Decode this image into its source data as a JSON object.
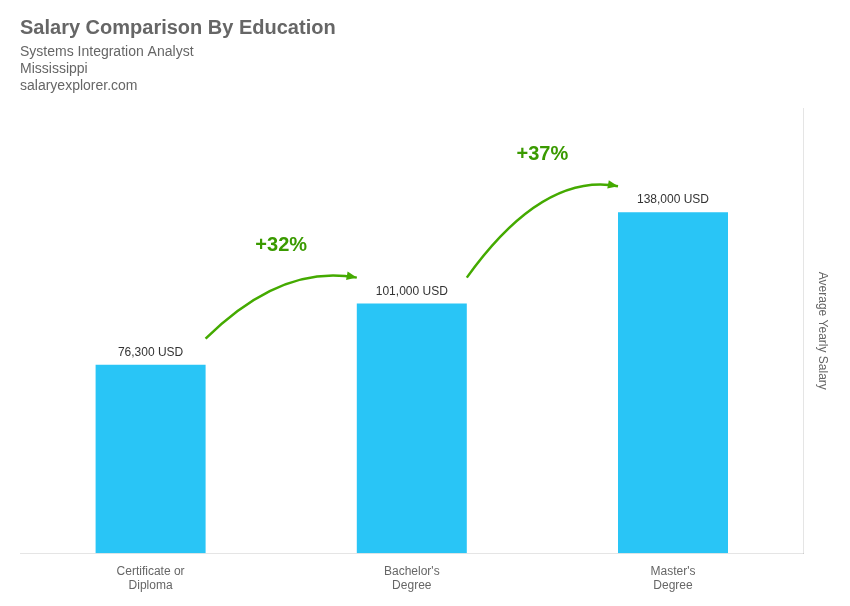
{
  "chart_data": {
    "type": "bar",
    "title": "Salary Comparison By Education",
    "subtitle": "Systems Integration Analyst",
    "ylabel": "Average Yearly Salary",
    "categories": [
      "Certificate or\nDiploma",
      "Bachelor's\nDegree",
      "Master's\nDegree"
    ],
    "values": [
      76300,
      101000,
      138000
    ],
    "value_labels": [
      "76,300 USD",
      "101,000 USD",
      "138,000 USD"
    ],
    "data_labels": true,
    "color": "#29c5f6",
    "ylim": [
      0,
      180000
    ],
    "tick_labels": "x",
    "grid": false,
    "annotations": [
      {
        "text": "Mississippi"
      },
      {
        "text": "salaryexplorer.com"
      },
      {
        "text": "+32%",
        "from": "Certificate or\nDiploma",
        "to": "Bachelor's\nDegree"
      },
      {
        "text": "+37%",
        "from": "Bachelor's\nDegree",
        "to": "Master's\nDegree"
      }
    ]
  }
}
